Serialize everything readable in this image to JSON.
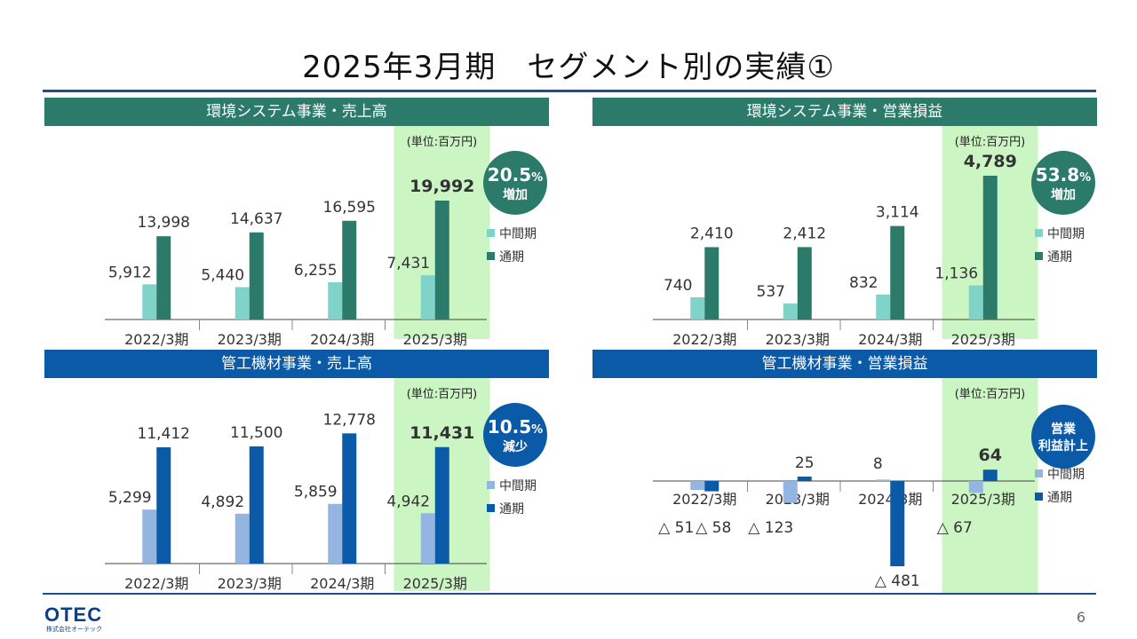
{
  "title": "2025年3月期　セグメント別の実績①",
  "page_number": "6",
  "logo": {
    "text": "OTEC",
    "subtext": "株式会社オーテック"
  },
  "unit_label": "(単位:百万円)",
  "legend": {
    "interim": "中間期",
    "full": "通期"
  },
  "colors": {
    "green_header": "#2b7a6a",
    "blue_header": "#0b5aa7",
    "green_interim": "#7fd3c8",
    "green_full": "#2b7a6a",
    "blue_interim": "#93b5e0",
    "blue_full": "#0b5aa7",
    "highlight": "#ccf5c4"
  },
  "chart_data": [
    {
      "type": "bar",
      "title": "環境システム事業・売上高",
      "theme": "green",
      "categories": [
        "2022/3期",
        "2023/3期",
        "2024/3期",
        "2025/3期"
      ],
      "series": [
        {
          "name": "中間期",
          "values": [
            5912,
            5440,
            6255,
            7431
          ],
          "labels": [
            "5,912",
            "5,440",
            "6,255",
            "7,431"
          ]
        },
        {
          "name": "通期",
          "values": [
            13998,
            14637,
            16595,
            19992
          ],
          "labels": [
            "13,998",
            "14,637",
            "16,595",
            "19,992"
          ]
        }
      ],
      "highlight_category": "2025/3期",
      "badge": {
        "value": "20.5",
        "unit": "%",
        "label": "増加"
      },
      "ylim": [
        0,
        20000
      ]
    },
    {
      "type": "bar",
      "title": "環境システム事業・営業損益",
      "theme": "green",
      "categories": [
        "2022/3期",
        "2023/3期",
        "2024/3期",
        "2025/3期"
      ],
      "series": [
        {
          "name": "中間期",
          "values": [
            740,
            537,
            832,
            1136
          ],
          "labels": [
            "740",
            "537",
            "832",
            "1,136"
          ]
        },
        {
          "name": "通期",
          "values": [
            2410,
            2412,
            3114,
            4789
          ],
          "labels": [
            "2,410",
            "2,412",
            "3,114",
            "4,789"
          ]
        }
      ],
      "highlight_category": "2025/3期",
      "badge": {
        "value": "53.8",
        "unit": "%",
        "label": "増加"
      },
      "ylim": [
        0,
        4800
      ]
    },
    {
      "type": "bar",
      "title": "管工機材事業・売上高",
      "theme": "blue",
      "categories": [
        "2022/3期",
        "2023/3期",
        "2024/3期",
        "2025/3期"
      ],
      "series": [
        {
          "name": "中間期",
          "values": [
            5299,
            4892,
            5859,
            4942
          ],
          "labels": [
            "5,299",
            "4,892",
            "5,859",
            "4,942"
          ]
        },
        {
          "name": "通期",
          "values": [
            11412,
            11500,
            12778,
            11431
          ],
          "labels": [
            "11,412",
            "11,500",
            "12,778",
            "11,431"
          ]
        }
      ],
      "highlight_category": "2025/3期",
      "badge": {
        "value": "10.5",
        "unit": "%",
        "label": "減少"
      },
      "ylim": [
        0,
        13000
      ]
    },
    {
      "type": "bar",
      "title": "管工機材事業・営業損益",
      "theme": "blue",
      "categories": [
        "2022/3期",
        "2023/3期",
        "2024/3期",
        "2025/3期"
      ],
      "series": [
        {
          "name": "中間期",
          "values": [
            -51,
            -123,
            8,
            -67
          ],
          "labels": [
            "△ 51",
            "△ 123",
            "",
            "△ 67"
          ]
        },
        {
          "name": "通期",
          "values": [
            -58,
            25,
            -481,
            64
          ],
          "labels": [
            "△ 58",
            "25",
            "△ 481",
            "64"
          ]
        }
      ],
      "highlight_category": "2025/3期",
      "badge": {
        "line1": "営業",
        "line2": "利益計上"
      },
      "ylim": [
        -481,
        64
      ]
    }
  ]
}
